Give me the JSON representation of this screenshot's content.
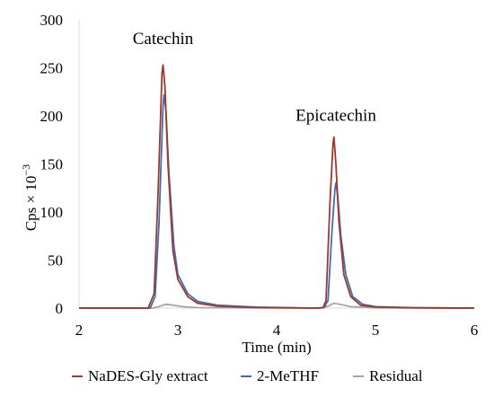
{
  "chart_data": {
    "type": "line",
    "xlabel": "Time (min)",
    "ylabel": "Cps × 10",
    "ylabel_superscript": "−3",
    "xlim": [
      2,
      6
    ],
    "ylim": [
      0,
      300
    ],
    "x_ticks": [
      "2",
      "3",
      "4",
      "5",
      "6"
    ],
    "y_ticks": [
      "0",
      "50",
      "100",
      "150",
      "200",
      "250",
      "300"
    ],
    "grid": false,
    "legend_position": "bottom",
    "annotations": [
      {
        "text": "Catechin",
        "x": 2.85,
        "y": 275
      },
      {
        "text": "Epicatechin",
        "x": 4.6,
        "y": 195
      }
    ],
    "series": [
      {
        "name": "NaDES-Gly extract",
        "color": "#a0382e",
        "x": [
          2.0,
          2.7,
          2.76,
          2.8,
          2.84,
          2.85,
          2.87,
          2.9,
          2.95,
          3.0,
          3.1,
          3.2,
          3.4,
          3.8,
          4.4,
          4.47,
          4.5,
          4.54,
          4.57,
          4.58,
          4.6,
          4.63,
          4.68,
          4.75,
          4.85,
          5.0,
          5.4,
          6.0
        ],
        "values": [
          0,
          0,
          15,
          120,
          245,
          253,
          230,
          150,
          60,
          30,
          12,
          5,
          2,
          0.5,
          0,
          0.5,
          8,
          110,
          170,
          178,
          150,
          90,
          35,
          12,
          3,
          1,
          0.3,
          0
        ]
      },
      {
        "name": "2-MeTHF",
        "color": "#3f6fb0",
        "x": [
          2.0,
          2.72,
          2.77,
          2.81,
          2.85,
          2.86,
          2.88,
          2.91,
          2.96,
          3.0,
          3.1,
          3.2,
          3.4,
          3.8,
          4.4,
          4.48,
          4.52,
          4.56,
          4.59,
          4.6,
          4.62,
          4.65,
          4.7,
          4.77,
          4.87,
          5.0,
          5.4,
          6.0
        ],
        "values": [
          0,
          0,
          12,
          90,
          210,
          222,
          205,
          140,
          65,
          35,
          15,
          7,
          3,
          1,
          0,
          0.5,
          8,
          80,
          124,
          130,
          115,
          75,
          35,
          12,
          4,
          1.5,
          0.4,
          0
        ]
      },
      {
        "name": "Residual",
        "color": "#a6a6a6",
        "x": [
          2.0,
          2.75,
          2.82,
          2.88,
          2.95,
          3.05,
          3.2,
          4.45,
          4.52,
          4.58,
          4.66,
          4.75,
          5.0,
          6.0
        ],
        "values": [
          0,
          0,
          2,
          4,
          3,
          1.5,
          0.5,
          0,
          2,
          5,
          3.5,
          1.5,
          0.3,
          0
        ]
      }
    ]
  }
}
